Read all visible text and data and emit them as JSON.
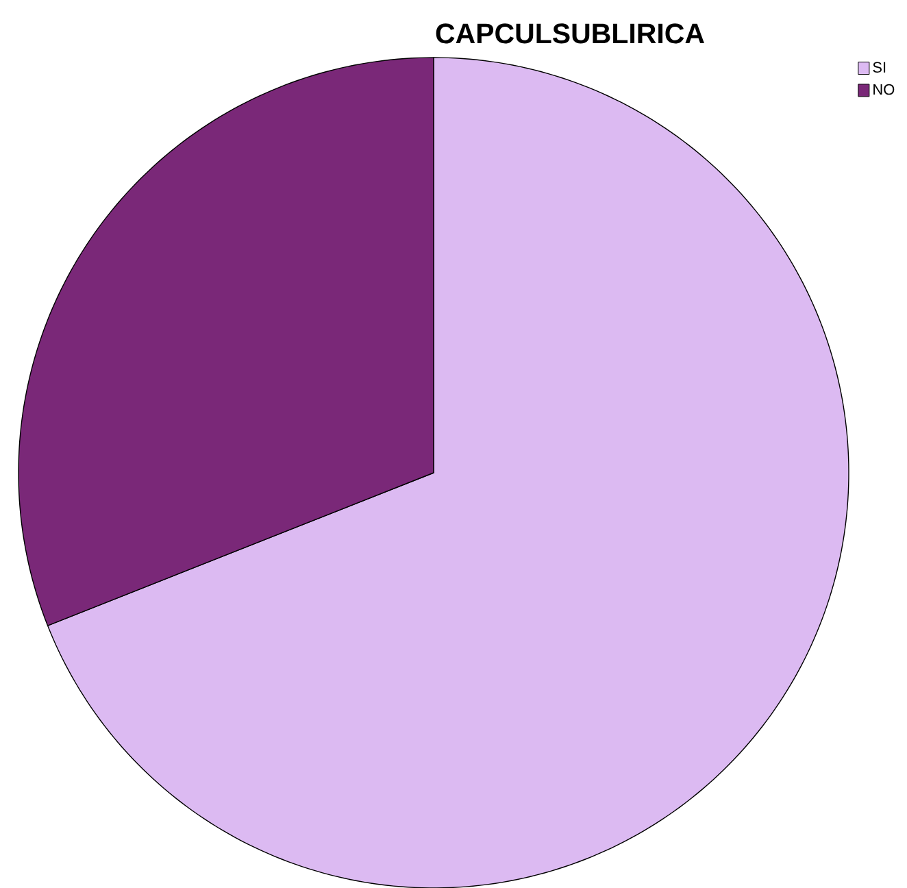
{
  "chart_data": {
    "type": "pie",
    "title": "CAPCULSUBLIRICA",
    "categories": [
      "SI",
      "NO"
    ],
    "values": [
      69,
      31
    ],
    "colors": [
      "#dcbaf2",
      "#7a2878"
    ],
    "legend": "top right"
  }
}
